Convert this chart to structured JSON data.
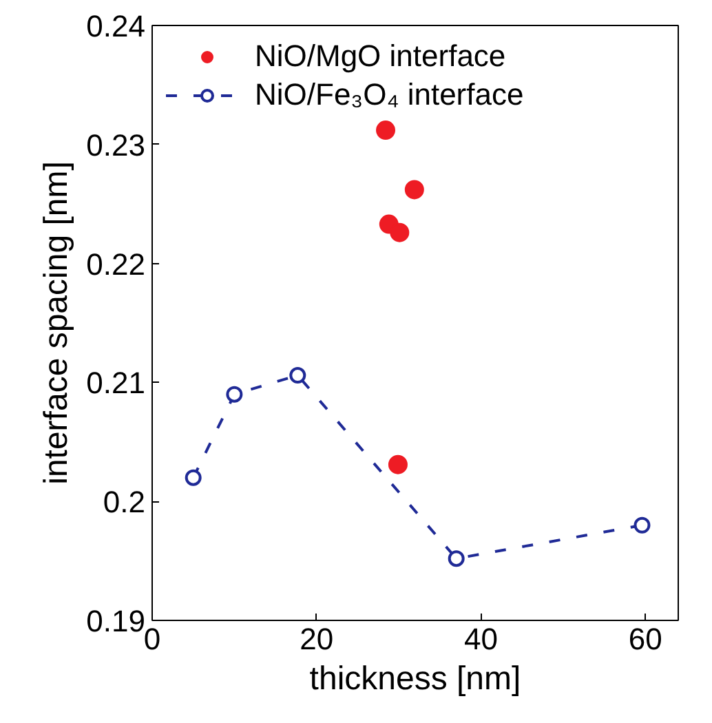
{
  "chart_data": {
    "type": "scatter",
    "xlabel": "thickness [nm]",
    "ylabel": "interface spacing [nm]",
    "xlim": [
      0,
      64
    ],
    "ylim": [
      0.19,
      0.24
    ],
    "xticks": [
      0,
      20,
      40,
      60
    ],
    "yticks": [
      0.19,
      0.2,
      0.21,
      0.22,
      0.23,
      0.24
    ],
    "grid": false,
    "legend": "top left",
    "series": [
      {
        "name": "NiO/MgO interface",
        "color": "#ee1c24",
        "marker": "circle",
        "x": [
          28.4,
          28.8,
          30.1,
          31.9,
          29.9
        ],
        "values": [
          0.2312,
          0.2233,
          0.2226,
          0.2262,
          0.2031
        ]
      },
      {
        "name": "NiO/Fe₃O₄ interface",
        "type": "line",
        "color": "#1f2a96",
        "marker": "circle",
        "line_style": "dashed",
        "x": [
          5.0,
          10.0,
          17.7,
          37.0,
          59.6
        ],
        "values": [
          0.202,
          0.209,
          0.2106,
          0.1952,
          0.198
        ]
      }
    ]
  }
}
